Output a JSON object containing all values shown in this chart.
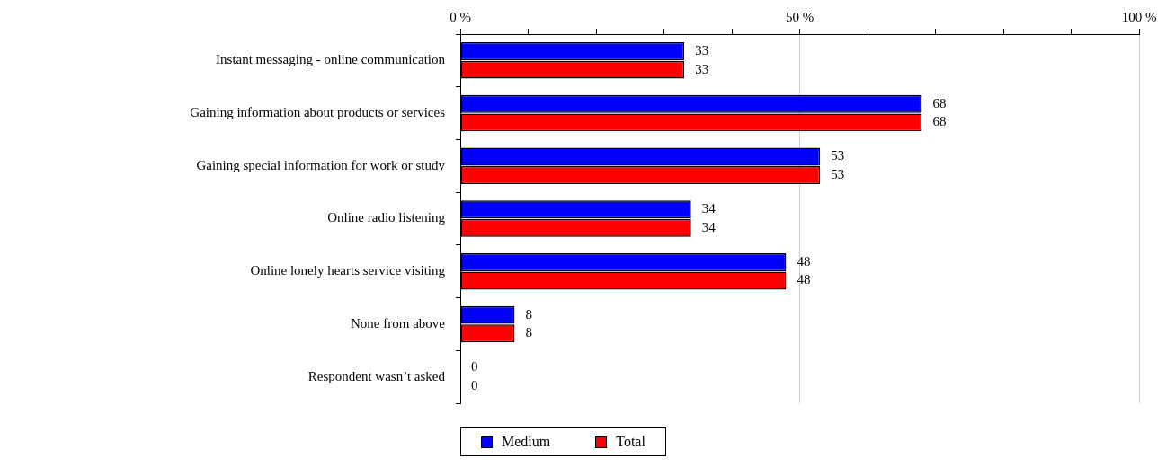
{
  "chart_data": {
    "type": "bar",
    "orientation": "horizontal",
    "categories": [
      "Instant messaging - online communication",
      "Gaining information about products or services",
      "Gaining special information for work or study",
      "Online radio listening",
      "Online lonely hearts service visiting",
      "None from above",
      "Respondent wasn’t asked"
    ],
    "series": [
      {
        "name": "Medium",
        "color": "#0000ff",
        "values": [
          33,
          68,
          53,
          34,
          48,
          8,
          0
        ]
      },
      {
        "name": "Total",
        "color": "#ff0000",
        "values": [
          33,
          68,
          53,
          34,
          48,
          8,
          0
        ]
      }
    ],
    "xlim": [
      0,
      100
    ],
    "xticks": [
      {
        "value": 0,
        "label": "0 %"
      },
      {
        "value": 10,
        "label": null
      },
      {
        "value": 20,
        "label": null
      },
      {
        "value": 30,
        "label": null
      },
      {
        "value": 40,
        "label": null
      },
      {
        "value": 50,
        "label": "50 %"
      },
      {
        "value": 60,
        "label": null
      },
      {
        "value": 70,
        "label": null
      },
      {
        "value": 80,
        "label": null
      },
      {
        "value": 90,
        "label": null
      },
      {
        "value": 100,
        "label": "100 %"
      }
    ],
    "grid": "x",
    "legend": "bottom",
    "data_labels": true
  }
}
